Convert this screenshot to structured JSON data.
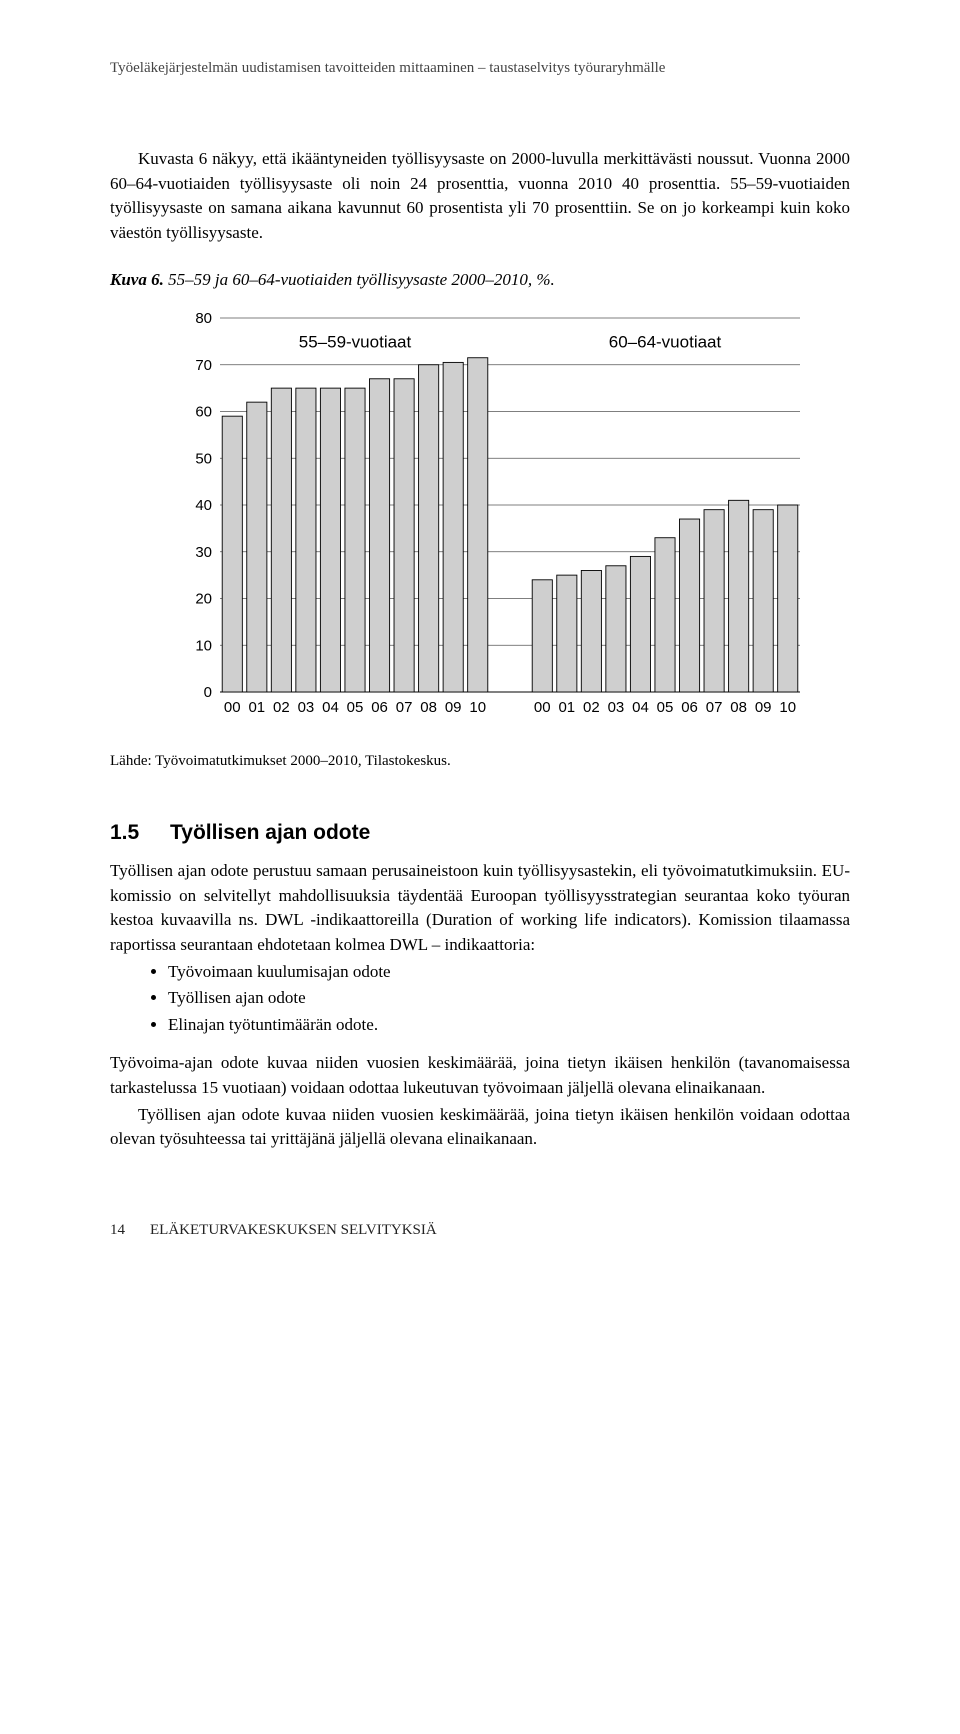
{
  "header": "Työeläkejärjestelmän uudistamisen tavoitteiden mittaaminen – taustaselvitys työuraryhmälle",
  "para1_a": "Kuvasta 6 näkyy, että ikääntyneiden työllisyysaste on 2000-luvulla merkittävästi noussut. Vuonna 2000 60–64-vuotiaiden työllisyysaste oli noin 24 prosenttia, vuonna 2010 40 prosenttia. 55–59-vuotiaiden työllisyysaste on samana aikana kavunnut 60 prosentista yli 70 prosenttiin. Se on jo korkeampi kuin koko väestön työllisyysaste.",
  "caption_prefix": "Kuva 6.",
  "caption_rest": " 55–59 ja 60–64-vuotiaiden työllisyysaste 2000–2010, %.",
  "chart": {
    "type": "bar",
    "y_label": "%",
    "ylim": [
      0,
      80
    ],
    "ytick_step": 10,
    "background_color": "#ffffff",
    "grid_color": "#555555",
    "bar_fill": "#cfcfcf",
    "bar_stroke": "#000000",
    "series_labels": [
      "55–59-vuotiaat",
      "60–64-vuotiaat"
    ],
    "x_labels": [
      "00",
      "01",
      "02",
      "03",
      "04",
      "05",
      "06",
      "07",
      "08",
      "09",
      "10"
    ],
    "series": [
      [
        59,
        62,
        65,
        65,
        65,
        65,
        67,
        67,
        70,
        70.5,
        71.5
      ],
      [
        24,
        25,
        26,
        27,
        29,
        33,
        37,
        39,
        41,
        39,
        40
      ]
    ],
    "bar_width": 0.82,
    "group_gap": 40,
    "axis_fontsize": 15,
    "label_fontsize": 17
  },
  "source": "Lähde: Työvoimatutkimukset 2000–2010, Tilastokeskus.",
  "section_num": "1.5",
  "section_title": "Työllisen ajan odote",
  "para2": "Työllisen ajan odote perustuu samaan perusaineistoon kuin työllisyysastekin, eli työvoimatutkimuksiin. EU-komissio on selvitellyt mahdollisuuksia täydentää Euroopan työllisyysstrategian seurantaa koko työuran kestoa kuvaavilla ns. DWL -indikaattoreilla (Duration of working life indicators). Komission tilaamassa raportissa seurantaan ehdotetaan kolmea DWL – indikaattoria:",
  "bullets": [
    "Työvoimaan kuulumisajan odote",
    "Työllisen ajan odote",
    "Elinajan työtuntimäärän odote."
  ],
  "para3": "Työvoima-ajan odote kuvaa niiden vuosien keskimäärää, joina tietyn ikäisen henkilön (tavanomaisessa tarkastelussa 15 vuotiaan) voidaan odottaa lukeutuvan työvoimaan jäljellä olevana elinaikanaan.",
  "para4": "Työllisen ajan odote kuvaa niiden vuosien keskimäärää, joina tietyn ikäisen henkilön voidaan odottaa olevan työsuhteessa tai yrittäjänä jäljellä olevana elinaikanaan.",
  "footer_page": "14",
  "footer_text": "ELÄKETURVAKESKUKSEN SELVITYKSIÄ"
}
